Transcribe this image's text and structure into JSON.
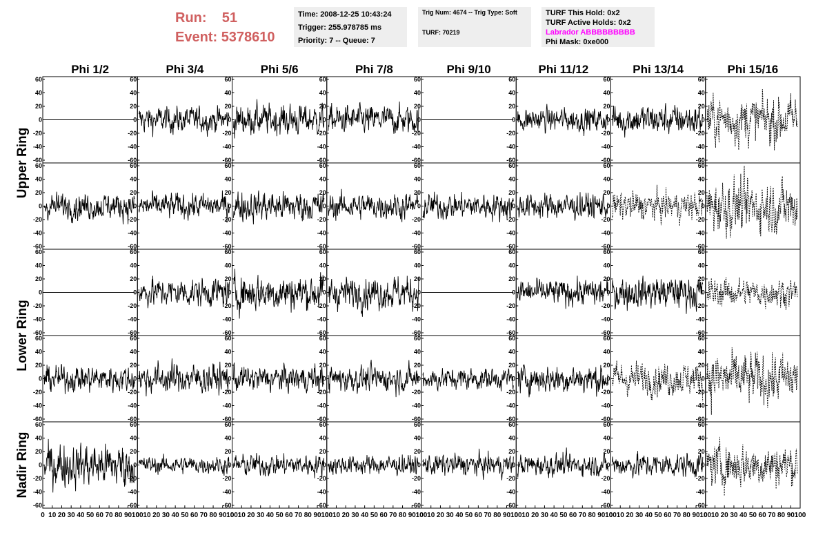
{
  "header": {
    "run_label": "Run:",
    "run_value": "51",
    "event_label": "Event:",
    "event_value": "5378610",
    "time": "Time: 2008-12-25 10:43:24",
    "trigger": "Trigger: 255.978785 ms",
    "priority": "Priority: 7 -- Queue: 7",
    "trig_num": "Trig Num: 4674 -- Trig Type: Soft",
    "turf": "TURF: 70219",
    "turf_this_hold": "TURF This Hold: 0x2",
    "turf_active_holds": "TURF Active Holds: 0x2",
    "labrador": "Labrador ABBBBBBBBB",
    "phi_mask": "Phi Mask: 0xe000"
  },
  "colors": {
    "run_text": "#d06060",
    "labrador_text": "#ff00ff",
    "info_bg": "#eeeeee"
  },
  "chart_data": {
    "type": "line",
    "grid": false,
    "columns": [
      "Phi 1/2",
      "Phi 3/4",
      "Phi 5/6",
      "Phi 7/8",
      "Phi 9/10",
      "Phi 11/12",
      "Phi 13/14",
      "Phi 15/16"
    ],
    "ring_labels": [
      "Upper Ring",
      "Lower Ring",
      "Nadir Ring"
    ],
    "rows": [
      {
        "ring": "Upper Ring",
        "amplitude": [
          0,
          12,
          14,
          13,
          0,
          11,
          14,
          22
        ],
        "style": [
          "solid",
          "solid",
          "solid",
          "solid",
          "solid",
          "solid",
          "solid",
          "dashed"
        ]
      },
      {
        "ring": "Upper Ring",
        "amplitude": [
          12,
          12,
          14,
          12,
          12,
          12,
          13,
          25
        ],
        "style": [
          "solid",
          "solid",
          "solid",
          "solid",
          "solid",
          "solid",
          "dashed",
          "dashed"
        ]
      },
      {
        "ring": "Lower Ring",
        "amplitude": [
          0,
          13,
          17,
          15,
          0,
          12,
          15,
          13
        ],
        "style": [
          "solid",
          "solid",
          "solid",
          "solid",
          "solid",
          "solid",
          "solid",
          "dashed"
        ]
      },
      {
        "ring": "Lower Ring",
        "amplitude": [
          12,
          14,
          12,
          12,
          10,
          13,
          15,
          24
        ],
        "style": [
          "solid",
          "solid",
          "solid",
          "solid",
          "solid",
          "solid",
          "dashed",
          "dashed"
        ]
      },
      {
        "ring": "Nadir Ring",
        "amplitude": [
          20,
          8,
          10,
          9,
          10,
          10,
          11,
          20
        ],
        "style": [
          "solid",
          "solid",
          "solid",
          "solid",
          "solid",
          "solid",
          "solid",
          "dashed"
        ]
      }
    ],
    "ylim": [
      -60,
      60
    ],
    "yticks": [
      "60",
      "40",
      "20",
      "0",
      "-20",
      "-40",
      "-60"
    ],
    "xlim": [
      0,
      100
    ],
    "xticks": [
      "0",
      "10",
      "20",
      "30",
      "40",
      "50",
      "60",
      "70",
      "80",
      "90",
      "100"
    ],
    "n_samples": 260
  }
}
